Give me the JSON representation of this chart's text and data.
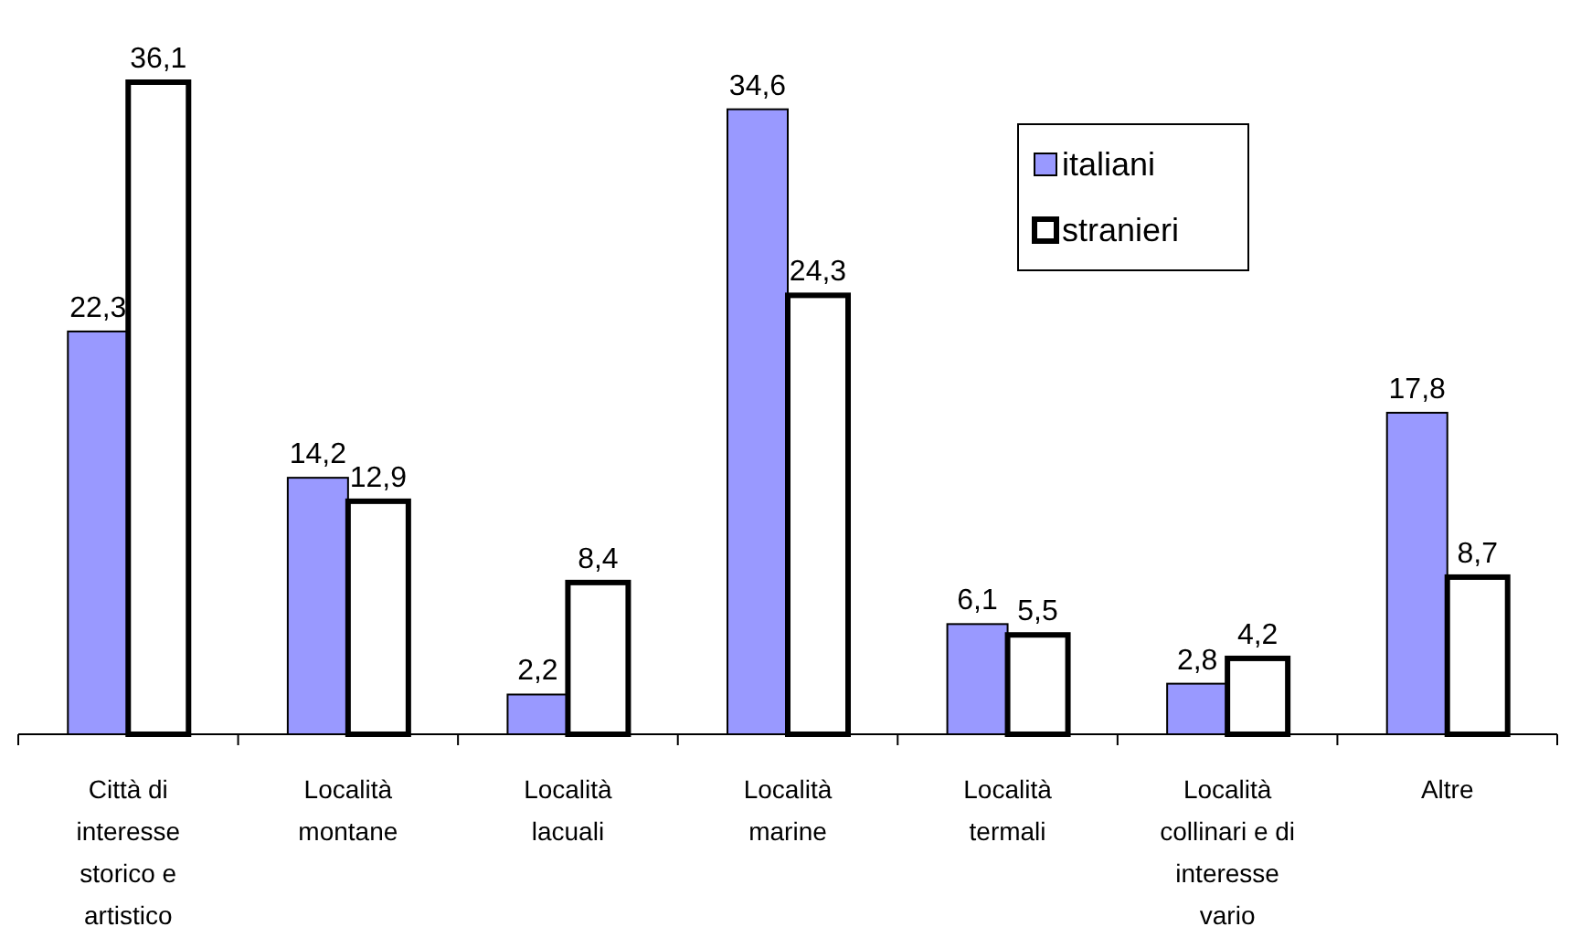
{
  "chart_data": {
    "type": "bar",
    "categories": [
      "Città di interesse storico e artistico",
      "Località montane",
      "Località lacuali",
      "Località marine",
      "Località termali",
      "Località collinari e di interesse vario",
      "Altre"
    ],
    "series": [
      {
        "name": "italiani",
        "color": "#9999ff",
        "values": [
          22.3,
          14.2,
          2.2,
          34.6,
          6.1,
          2.8,
          17.8
        ],
        "value_labels": [
          "22,3",
          "14,2",
          "2,2",
          "34,6",
          "6,1",
          "2,8",
          "17,8"
        ]
      },
      {
        "name": "stranieri",
        "color": "#ffffff",
        "values": [
          36.1,
          12.9,
          8.4,
          24.3,
          5.5,
          4.2,
          8.7
        ],
        "value_labels": [
          "36,1",
          "12,9",
          "8,4",
          "24,3",
          "5,5",
          "4,2",
          "8,7"
        ]
      }
    ],
    "legend": "top right"
  }
}
